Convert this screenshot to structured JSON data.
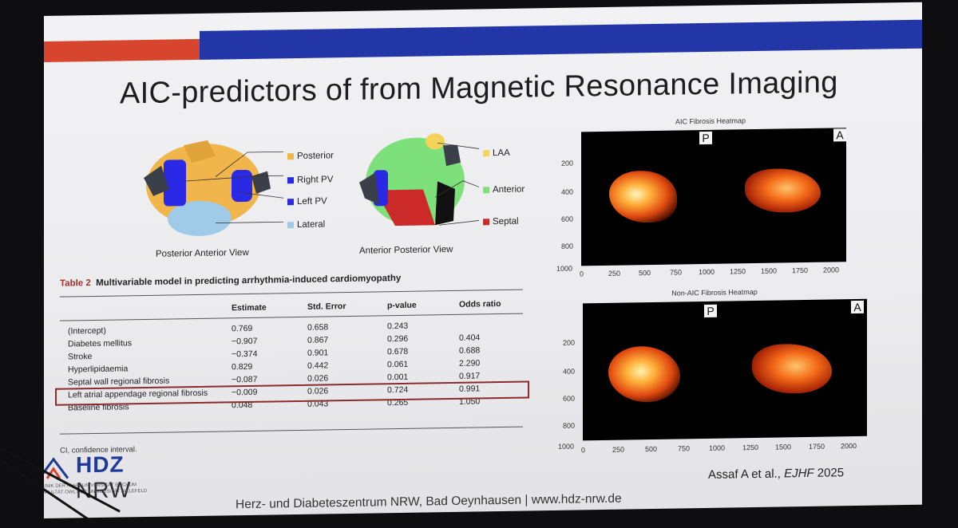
{
  "slide": {
    "title": "AIC-predictors of from Magnetic Resonance Imaging",
    "posterior_view": {
      "caption": "Posterior Anterior View",
      "labels": [
        "Posterior",
        "Right PV",
        "Left PV",
        "Lateral"
      ],
      "colors": [
        "#f0b64b",
        "#2a2ae6",
        "#2a2ae6",
        "#9fcbe8"
      ]
    },
    "anterior_view": {
      "caption": "Anterior Posterior View",
      "labels": [
        "LAA",
        "Anterior",
        "Septal"
      ],
      "colors": [
        "#f5d25a",
        "#7ee07a",
        "#cc2a2a"
      ]
    },
    "table": {
      "number": "Table 2",
      "title": "Multivariable model in predicting arrhythmia-induced cardiomyopathy",
      "headers": [
        "Estimate",
        "Std. Error",
        "p-value",
        "Odds ratio"
      ],
      "rows": [
        [
          "(Intercept)",
          "0.769",
          "0.658",
          "0.243",
          ""
        ],
        [
          "Diabetes mellitus",
          "−0.907",
          "0.867",
          "0.296",
          "0.404"
        ],
        [
          "Stroke",
          "−0.374",
          "0.901",
          "0.678",
          "0.688"
        ],
        [
          "Hyperlipidaemia",
          "0.829",
          "0.442",
          "0.061",
          "2.290"
        ],
        [
          "Septal wall regional fibrosis",
          "−0.087",
          "0.026",
          "0.001",
          "0.917"
        ],
        [
          "Left atrial appendage regional fibrosis",
          "−0.009",
          "0.026",
          "0.724",
          "0.991"
        ],
        [
          "Baseline fibrosis",
          "0.048",
          "0.043",
          "0.265",
          "1.050"
        ]
      ],
      "highlighted_row": "Septal wall regional fibrosis",
      "footnote": "CI, confidence interval."
    },
    "heatmaps": [
      {
        "title": "AIC Fibrosis Heatmap",
        "left_tag": "P",
        "right_tag": "A",
        "y_ticks": [
          "200",
          "400",
          "600",
          "800",
          "1000"
        ],
        "x_ticks": [
          "0",
          "250",
          "500",
          "750",
          "1000",
          "1250",
          "1500",
          "1750",
          "2000"
        ]
      },
      {
        "title": "Non-AIC Fibrosis Heatmap",
        "left_tag": "P",
        "right_tag": "A",
        "y_ticks": [
          "200",
          "400",
          "600",
          "800",
          "1000"
        ],
        "x_ticks": [
          "0",
          "250",
          "500",
          "750",
          "1000",
          "1250",
          "1500",
          "1750",
          "2000"
        ]
      }
    ],
    "logo": {
      "name_bold": "HDZ",
      "name_rest": "NRW",
      "university_line1": "UNIVERSITÄTSKLINIK DER RUHR-UNIVERSITÄT BOCHUM",
      "university_line2": "MEDIZINISCHE FAKULTÄT OWL DER UNIVERSITÄT BIELEFELD"
    },
    "footer": "Herz- und Diabeteszentrum NRW, Bad Oeynhausen | www.hdz-nrw.de",
    "citation_prefix": "Assaf A et al.,",
    "citation_journal": "EJHF",
    "citation_year": "2025",
    "accent_colors": {
      "red": "#d8452f",
      "blue": "#2236a8",
      "highlight": "#8a2b2b"
    }
  }
}
